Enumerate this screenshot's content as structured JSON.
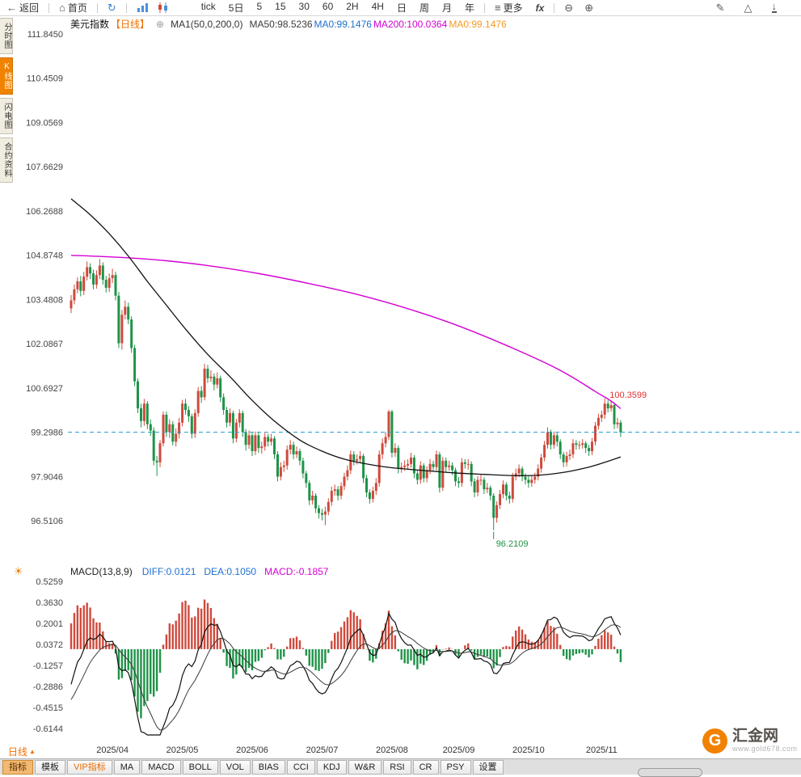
{
  "topbar": {
    "back_label": "返回",
    "home_label": "首页",
    "timeframes": [
      "tick",
      "5日",
      "5",
      "15",
      "30",
      "60",
      "2H",
      "4H",
      "日",
      "周",
      "月",
      "年"
    ],
    "more_label": "更多",
    "fx_label": "fx"
  },
  "left_rail": {
    "tabs": [
      {
        "label": "分时图",
        "active": false
      },
      {
        "label": "K线图",
        "active": true
      },
      {
        "label": "闪电图",
        "active": false
      },
      {
        "label": "合约资料",
        "active": false
      }
    ]
  },
  "chart_header": {
    "symbol": "美元指数",
    "period": "【日线】",
    "ma_settings": "MA1(50,0,200,0)",
    "ma_values": [
      {
        "text": "MA50:98.5236",
        "color": "#3c3c3c"
      },
      {
        "text": "MA0:99.1476",
        "color": "#1e6fd0"
      },
      {
        "text": "MA200:100.0364",
        "color": "#d400d4"
      },
      {
        "text": "MA0:99.1476",
        "color": "#f59a23"
      }
    ]
  },
  "chart_data": {
    "type": "candlestick",
    "symbol": "美元指数",
    "period": "日线",
    "y_axis_labels": [
      "111.8450",
      "110.4509",
      "109.0569",
      "107.6629",
      "106.2688",
      "104.8748",
      "103.4808",
      "102.0867",
      "100.6927",
      "99.2986",
      "97.9046",
      "96.5106"
    ],
    "y_top_value": 111.845,
    "y_bottom_value": 96.5106,
    "last_price_line": 99.2986,
    "high_annotation": {
      "text": "100.3599",
      "index": 168,
      "price": 100.36
    },
    "low_annotation": {
      "text": "96.2109",
      "index": 133,
      "price": 96.21
    },
    "x_axis_labels": [
      {
        "text": "2025/04",
        "index": 13
      },
      {
        "text": "2025/05",
        "index": 35
      },
      {
        "text": "2025/06",
        "index": 57
      },
      {
        "text": "2025/07",
        "index": 79
      },
      {
        "text": "2025/08",
        "index": 101
      },
      {
        "text": "2025/09",
        "index": 122
      },
      {
        "text": "2025/10",
        "index": 144
      },
      {
        "text": "2025/11",
        "index": 167
      }
    ],
    "candles": [
      [
        103.2,
        103.62,
        103.05,
        103.45
      ],
      [
        103.45,
        103.95,
        103.33,
        103.8
      ],
      [
        103.8,
        104.18,
        103.68,
        104.05
      ],
      [
        104.05,
        104.22,
        103.58,
        103.75
      ],
      [
        103.75,
        104.35,
        103.62,
        104.2
      ],
      [
        104.2,
        104.68,
        104.08,
        104.5
      ],
      [
        104.5,
        104.62,
        104.12,
        104.3
      ],
      [
        104.3,
        104.42,
        103.8,
        103.95
      ],
      [
        103.95,
        104.4,
        103.82,
        104.25
      ],
      [
        104.25,
        104.75,
        104.12,
        104.55
      ],
      [
        104.55,
        104.65,
        103.95,
        104.1
      ],
      [
        104.1,
        104.22,
        103.7,
        103.85
      ],
      [
        103.85,
        104.3,
        103.72,
        104.15
      ],
      [
        104.15,
        104.45,
        104.0,
        104.25
      ],
      [
        104.25,
        104.35,
        103.45,
        103.6
      ],
      [
        103.6,
        103.72,
        101.95,
        102.1
      ],
      [
        102.1,
        103.15,
        101.9,
        103.0
      ],
      [
        103.0,
        103.45,
        102.85,
        103.25
      ],
      [
        103.25,
        103.38,
        102.7,
        102.85
      ],
      [
        102.85,
        102.95,
        101.8,
        101.95
      ],
      [
        101.95,
        102.05,
        100.75,
        100.9
      ],
      [
        100.9,
        101.0,
        99.9,
        100.05
      ],
      [
        100.05,
        100.2,
        99.45,
        99.65
      ],
      [
        99.65,
        100.35,
        99.5,
        100.2
      ],
      [
        100.2,
        100.28,
        99.4,
        99.55
      ],
      [
        99.55,
        99.7,
        99.18,
        99.35
      ],
      [
        99.35,
        99.45,
        98.25,
        98.4
      ],
      [
        98.4,
        98.55,
        97.92,
        98.35
      ],
      [
        98.35,
        99.05,
        98.2,
        98.95
      ],
      [
        98.95,
        99.95,
        98.85,
        99.85
      ],
      [
        99.85,
        99.95,
        99.15,
        99.3
      ],
      [
        99.3,
        99.7,
        99.12,
        99.55
      ],
      [
        99.55,
        99.65,
        98.88,
        99.0
      ],
      [
        99.0,
        99.42,
        98.85,
        99.25
      ],
      [
        99.25,
        99.75,
        99.1,
        99.6
      ],
      [
        99.6,
        100.32,
        99.48,
        100.2
      ],
      [
        100.2,
        100.35,
        99.85,
        100.0
      ],
      [
        100.0,
        100.12,
        99.62,
        99.8
      ],
      [
        99.8,
        99.88,
        99.1,
        99.25
      ],
      [
        99.25,
        100.02,
        99.12,
        99.9
      ],
      [
        99.9,
        100.72,
        99.78,
        100.6
      ],
      [
        100.6,
        100.75,
        100.22,
        100.4
      ],
      [
        100.4,
        101.45,
        100.3,
        101.3
      ],
      [
        101.3,
        101.42,
        100.85,
        101.0
      ],
      [
        101.0,
        101.25,
        100.88,
        101.05
      ],
      [
        101.05,
        101.15,
        100.62,
        100.8
      ],
      [
        100.8,
        101.18,
        100.68,
        101.0
      ],
      [
        101.0,
        101.08,
        100.25,
        100.4
      ],
      [
        100.4,
        100.52,
        99.85,
        100.0
      ],
      [
        100.0,
        100.1,
        99.45,
        99.6
      ],
      [
        99.6,
        100.05,
        99.48,
        99.9
      ],
      [
        99.9,
        99.98,
        98.95,
        99.1
      ],
      [
        99.1,
        99.72,
        98.98,
        99.6
      ],
      [
        99.6,
        100.02,
        99.45,
        99.9
      ],
      [
        99.9,
        99.98,
        99.15,
        99.3
      ],
      [
        99.3,
        99.4,
        98.72,
        98.9
      ],
      [
        98.9,
        99.35,
        98.78,
        99.2
      ],
      [
        99.2,
        99.28,
        98.55,
        98.7
      ],
      [
        98.7,
        99.32,
        98.58,
        99.2
      ],
      [
        99.2,
        99.3,
        98.65,
        98.8
      ],
      [
        98.8,
        99.0,
        98.62,
        98.85
      ],
      [
        98.85,
        99.28,
        98.72,
        99.15
      ],
      [
        99.15,
        99.25,
        98.85,
        99.0
      ],
      [
        99.0,
        99.25,
        98.88,
        99.1
      ],
      [
        99.1,
        99.18,
        98.45,
        98.6
      ],
      [
        98.6,
        98.7,
        97.75,
        97.9
      ],
      [
        97.9,
        98.35,
        97.78,
        98.2
      ],
      [
        98.2,
        98.4,
        98.05,
        98.25
      ],
      [
        98.25,
        98.88,
        98.12,
        98.75
      ],
      [
        98.75,
        99.05,
        98.6,
        98.9
      ],
      [
        98.9,
        99.0,
        98.45,
        98.6
      ],
      [
        98.6,
        98.85,
        98.48,
        98.7
      ],
      [
        98.7,
        98.78,
        98.25,
        98.4
      ],
      [
        98.4,
        98.5,
        97.85,
        98.0
      ],
      [
        98.0,
        98.08,
        97.55,
        97.7
      ],
      [
        97.7,
        97.78,
        97.0,
        97.15
      ],
      [
        97.15,
        97.45,
        97.02,
        97.3
      ],
      [
        97.3,
        97.38,
        96.75,
        96.9
      ],
      [
        96.9,
        97.0,
        96.58,
        96.75
      ],
      [
        96.75,
        96.88,
        96.52,
        96.7
      ],
      [
        96.7,
        96.95,
        96.37,
        96.8
      ],
      [
        96.8,
        97.22,
        96.68,
        97.1
      ],
      [
        97.1,
        97.58,
        96.98,
        97.45
      ],
      [
        97.45,
        97.65,
        97.3,
        97.5
      ],
      [
        97.5,
        97.6,
        97.15,
        97.3
      ],
      [
        97.3,
        97.72,
        97.18,
        97.6
      ],
      [
        97.6,
        98.02,
        97.48,
        97.9
      ],
      [
        97.9,
        98.25,
        97.78,
        98.1
      ],
      [
        98.1,
        98.72,
        97.98,
        98.6
      ],
      [
        98.6,
        98.7,
        98.25,
        98.4
      ],
      [
        98.4,
        98.6,
        98.28,
        98.45
      ],
      [
        98.45,
        98.7,
        98.32,
        98.55
      ],
      [
        98.55,
        98.62,
        97.7,
        97.85
      ],
      [
        97.85,
        97.95,
        97.25,
        97.4
      ],
      [
        97.4,
        97.5,
        97.05,
        97.2
      ],
      [
        97.2,
        97.58,
        97.08,
        97.45
      ],
      [
        97.45,
        97.85,
        97.32,
        97.7
      ],
      [
        97.7,
        98.72,
        97.58,
        98.6
      ],
      [
        98.6,
        99.1,
        98.45,
        98.95
      ],
      [
        98.95,
        99.3,
        98.82,
        99.15
      ],
      [
        99.15,
        100.0,
        99.05,
        99.95
      ],
      [
        99.95,
        100.0,
        98.5,
        98.65
      ],
      [
        98.65,
        98.95,
        98.52,
        98.8
      ],
      [
        98.8,
        98.88,
        98.0,
        98.15
      ],
      [
        98.15,
        98.35,
        98.02,
        98.2
      ],
      [
        98.2,
        98.42,
        98.08,
        98.25
      ],
      [
        98.25,
        98.45,
        98.12,
        98.3
      ],
      [
        98.3,
        98.65,
        98.18,
        98.5
      ],
      [
        98.5,
        98.58,
        97.85,
        98.0
      ],
      [
        98.0,
        98.1,
        97.65,
        97.8
      ],
      [
        97.8,
        98.38,
        97.68,
        98.25
      ],
      [
        98.25,
        98.32,
        97.72,
        97.85
      ],
      [
        97.85,
        98.22,
        97.72,
        98.1
      ],
      [
        98.1,
        98.45,
        97.98,
        98.3
      ],
      [
        98.3,
        98.4,
        98.05,
        98.2
      ],
      [
        98.2,
        98.72,
        98.08,
        98.6
      ],
      [
        98.6,
        98.68,
        97.4,
        97.55
      ],
      [
        97.55,
        98.52,
        97.45,
        98.4
      ],
      [
        98.4,
        98.5,
        98.05,
        98.2
      ],
      [
        98.2,
        98.4,
        98.08,
        98.25
      ],
      [
        98.25,
        98.35,
        97.95,
        98.1
      ],
      [
        98.1,
        98.18,
        97.6,
        97.75
      ],
      [
        97.75,
        97.88,
        97.55,
        97.7
      ],
      [
        97.7,
        98.48,
        97.58,
        98.35
      ],
      [
        98.35,
        98.45,
        98.15,
        98.3
      ],
      [
        98.3,
        98.45,
        98.12,
        98.3
      ],
      [
        98.3,
        98.38,
        97.6,
        97.75
      ],
      [
        97.75,
        97.85,
        97.25,
        97.4
      ],
      [
        97.4,
        97.92,
        97.28,
        97.8
      ],
      [
        97.8,
        97.95,
        97.62,
        97.8
      ],
      [
        97.8,
        97.88,
        97.35,
        97.5
      ],
      [
        97.5,
        97.7,
        97.38,
        97.55
      ],
      [
        97.55,
        97.62,
        97.15,
        97.3
      ],
      [
        97.3,
        97.38,
        96.21,
        96.6
      ],
      [
        96.6,
        97.12,
        96.45,
        97.0
      ],
      [
        97.0,
        97.48,
        96.88,
        97.35
      ],
      [
        97.35,
        97.78,
        97.22,
        97.65
      ],
      [
        97.65,
        97.72,
        97.15,
        97.3
      ],
      [
        97.3,
        97.42,
        97.05,
        97.2
      ],
      [
        97.2,
        98.02,
        97.08,
        97.9
      ],
      [
        97.9,
        98.15,
        97.78,
        98.0
      ],
      [
        98.0,
        98.28,
        97.88,
        98.15
      ],
      [
        98.15,
        98.22,
        97.75,
        97.9
      ],
      [
        97.9,
        98.0,
        97.65,
        97.8
      ],
      [
        97.8,
        97.92,
        97.55,
        97.7
      ],
      [
        97.7,
        97.95,
        97.58,
        97.8
      ],
      [
        97.8,
        98.02,
        97.68,
        97.9
      ],
      [
        97.9,
        98.28,
        97.78,
        98.15
      ],
      [
        98.15,
        98.62,
        98.02,
        98.5
      ],
      [
        98.5,
        99.02,
        98.38,
        98.9
      ],
      [
        98.9,
        99.45,
        98.78,
        99.3
      ],
      [
        99.3,
        99.38,
        98.75,
        98.9
      ],
      [
        98.9,
        99.32,
        98.78,
        99.2
      ],
      [
        99.2,
        99.28,
        98.85,
        99.0
      ],
      [
        99.0,
        99.08,
        98.45,
        98.6
      ],
      [
        98.6,
        98.68,
        98.2,
        98.35
      ],
      [
        98.35,
        98.68,
        98.22,
        98.55
      ],
      [
        98.55,
        98.75,
        98.42,
        98.6
      ],
      [
        98.6,
        99.08,
        98.48,
        98.95
      ],
      [
        98.95,
        99.05,
        98.75,
        98.9
      ],
      [
        98.9,
        99.02,
        98.76,
        98.9
      ],
      [
        98.9,
        99.08,
        98.78,
        98.95
      ],
      [
        98.95,
        99.02,
        98.65,
        98.8
      ],
      [
        98.8,
        98.9,
        98.55,
        98.7
      ],
      [
        98.7,
        99.12,
        98.58,
        99.0
      ],
      [
        99.0,
        99.62,
        98.88,
        99.5
      ],
      [
        99.5,
        99.88,
        99.38,
        99.75
      ],
      [
        99.75,
        99.98,
        99.62,
        99.85
      ],
      [
        99.85,
        100.36,
        99.72,
        100.2
      ],
      [
        100.2,
        100.3,
        99.92,
        100.05
      ],
      [
        100.05,
        100.28,
        99.95,
        100.15
      ],
      [
        100.15,
        100.22,
        99.4,
        99.55
      ],
      [
        99.55,
        99.75,
        99.42,
        99.6
      ],
      [
        99.6,
        99.68,
        99.15,
        99.29
      ]
    ],
    "ma50": [
      [
        0,
        106.65
      ],
      [
        6,
        106.15
      ],
      [
        12,
        105.55
      ],
      [
        18,
        104.85
      ],
      [
        24,
        104.05
      ],
      [
        30,
        103.3
      ],
      [
        36,
        102.55
      ],
      [
        43,
        101.75
      ],
      [
        50,
        101.05
      ],
      [
        57,
        100.3
      ],
      [
        64,
        99.65
      ],
      [
        72,
        99.05
      ],
      [
        79,
        98.7
      ],
      [
        86,
        98.45
      ],
      [
        94,
        98.28
      ],
      [
        101,
        98.18
      ],
      [
        110,
        98.1
      ],
      [
        120,
        98.02
      ],
      [
        130,
        97.97
      ],
      [
        140,
        97.93
      ],
      [
        148,
        97.95
      ],
      [
        156,
        98.05
      ],
      [
        163,
        98.2
      ],
      [
        168,
        98.35
      ],
      [
        173,
        98.52
      ]
    ],
    "ma200": [
      [
        0,
        104.87
      ],
      [
        15,
        104.81
      ],
      [
        30,
        104.7
      ],
      [
        45,
        104.52
      ],
      [
        60,
        104.28
      ],
      [
        75,
        103.98
      ],
      [
        90,
        103.64
      ],
      [
        105,
        103.22
      ],
      [
        120,
        102.72
      ],
      [
        135,
        102.12
      ],
      [
        150,
        101.45
      ],
      [
        158,
        101.02
      ],
      [
        165,
        100.58
      ],
      [
        170,
        100.28
      ],
      [
        173,
        100.04
      ]
    ],
    "colors": {
      "up": "#cf4a3c",
      "down": "#1f9348",
      "ma50": "#111111",
      "ma200": "#d400d4",
      "price_line": "#2a9fd0",
      "high_label": "#e03030",
      "low_label": "#1f9348"
    }
  },
  "macd": {
    "title": "MACD(13,8,9)",
    "values": [
      {
        "text": "DIFF:0.0121",
        "color": "#1e6fd0"
      },
      {
        "text": "DEA:0.1050",
        "color": "#1e6fd0"
      },
      {
        "text": "MACD:-0.1857",
        "color": "#d400d4"
      }
    ],
    "y_axis_labels": [
      "0.5259",
      "0.3630",
      "0.2001",
      "0.0372",
      "-0.1257",
      "-0.2886",
      "-0.4515",
      "-0.6144"
    ],
    "y_top_value": 0.5259,
    "y_bottom_value": -0.6144
  },
  "bottom": {
    "period_tab": "日线",
    "indicator_tabs": [
      {
        "label": "指标",
        "style": "selected"
      },
      {
        "label": "模板",
        "style": "normal"
      },
      {
        "label": "VIP指标",
        "style": "vip"
      },
      {
        "label": "MA",
        "style": "normal"
      },
      {
        "label": "MACD",
        "style": "normal"
      },
      {
        "label": "BOLL",
        "style": "normal"
      },
      {
        "label": "VOL",
        "style": "normal"
      },
      {
        "label": "BIAS",
        "style": "normal"
      },
      {
        "label": "CCI",
        "style": "normal"
      },
      {
        "label": "KDJ",
        "style": "normal"
      },
      {
        "label": "W&R",
        "style": "normal"
      },
      {
        "label": "RSI",
        "style": "normal"
      },
      {
        "label": "CR",
        "style": "normal"
      },
      {
        "label": "PSY",
        "style": "normal"
      },
      {
        "label": "设置",
        "style": "normal"
      }
    ]
  },
  "watermark": {
    "brand": "汇金网",
    "url": "www.gold678.com"
  }
}
